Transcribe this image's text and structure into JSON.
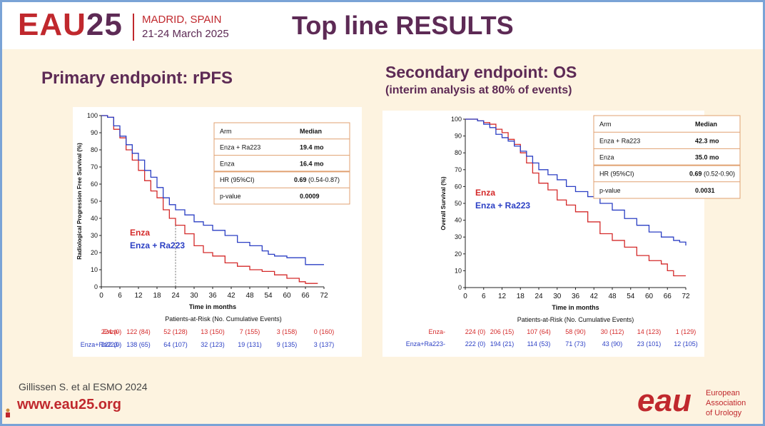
{
  "header": {
    "logo_main": "EAU",
    "logo_num": "25",
    "location": "MADRID, SPAIN",
    "dates": "21-24 March 2025",
    "title": "Top line RESULTS"
  },
  "footer": {
    "citation": "Gillissen S. et al ESMO 2024",
    "url": "www.eau25.org",
    "logo": "eau",
    "org_line1": "European",
    "org_line2": "Association",
    "org_line3": "of Urology"
  },
  "colors": {
    "brand_red": "#c0282d",
    "brand_purple": "#5d2a55",
    "enza": "#d42a2a",
    "enza_ra223": "#2b3fc4",
    "table_border": "#e0a070"
  },
  "chart_data": [
    {
      "type": "line",
      "panel_title": "Primary endpoint: rPFS",
      "ylabel": "Radiological Progression Free Survival (%)",
      "xlabel": "Time in months",
      "xlim": [
        0,
        72
      ],
      "ylim": [
        0,
        100
      ],
      "xticks": [
        0,
        6,
        12,
        18,
        24,
        30,
        36,
        42,
        48,
        54,
        60,
        66,
        72
      ],
      "yticks": [
        0,
        10,
        20,
        30,
        40,
        50,
        60,
        70,
        80,
        90,
        100
      ],
      "series": [
        {
          "name": "Enza",
          "color": "#d42a2a",
          "x": [
            0,
            2,
            4,
            6,
            8,
            10,
            12,
            14,
            16,
            18,
            20,
            22,
            24,
            27,
            30,
            33,
            36,
            40,
            44,
            48,
            52,
            56,
            60,
            64,
            66,
            68,
            70
          ],
          "y": [
            100,
            99,
            92,
            87,
            80,
            74,
            68,
            62,
            56,
            52,
            45,
            40,
            36,
            31,
            24,
            20,
            18,
            14,
            12,
            10,
            9,
            7,
            5,
            3,
            2,
            2,
            2
          ]
        },
        {
          "name": "Enza + Ra223",
          "color": "#2b3fc4",
          "x": [
            0,
            2,
            4,
            6,
            8,
            10,
            12,
            14,
            16,
            18,
            20,
            22,
            24,
            27,
            30,
            33,
            36,
            40,
            44,
            48,
            52,
            54,
            56,
            60,
            66,
            68,
            70,
            72
          ],
          "y": [
            100,
            99,
            94,
            88,
            83,
            78,
            74,
            68,
            64,
            58,
            52,
            48,
            45,
            42,
            38,
            36,
            33,
            30,
            26,
            24,
            21,
            19,
            18,
            17,
            13,
            13,
            13,
            13
          ]
        }
      ],
      "table": {
        "col_arm": "Arm",
        "col_median": "Median",
        "rows": [
          {
            "arm": "Enza + Ra223",
            "median": "19.4 mo"
          },
          {
            "arm": "Enza",
            "median": "16.4 mo"
          },
          {
            "arm": "HR (95%CI)",
            "median_bold": "0.69",
            "median_rest": " (0.54-0.87)"
          },
          {
            "arm": "p-value",
            "median": "0.0009"
          }
        ]
      },
      "legend": [
        "Enza",
        "Enza + Ra223"
      ],
      "risk": {
        "title": "Patients-at-Risk (No. Cumulative Events)",
        "rows": [
          {
            "label": "Enza-",
            "color": "#d42a2a",
            "values": [
              "224 (0)",
              "122 (84)",
              "52 (128)",
              "13 (150)",
              "7 (155)",
              "3 (158)",
              "0 (160)"
            ]
          },
          {
            "label": "Enza+Ra223-",
            "color": "#2b3fc4",
            "values": [
              "222 (0)",
              "138 (65)",
              "64 (107)",
              "32 (123)",
              "19 (131)",
              "9 (135)",
              "3 (137)"
            ]
          }
        ]
      }
    },
    {
      "type": "line",
      "panel_title": "Secondary endpoint: OS",
      "panel_subtitle": "(interim analysis  at 80% of events)",
      "ylabel": "Overall Survival (%)",
      "xlabel": "Time in months",
      "xlim": [
        0,
        72
      ],
      "ylim": [
        0,
        100
      ],
      "xticks": [
        0,
        6,
        12,
        18,
        24,
        30,
        36,
        42,
        48,
        54,
        60,
        66,
        72
      ],
      "yticks": [
        0,
        10,
        20,
        30,
        40,
        50,
        60,
        70,
        80,
        90,
        100
      ],
      "series": [
        {
          "name": "Enza",
          "color": "#d42a2a",
          "x": [
            0,
            4,
            6,
            8,
            10,
            12,
            14,
            16,
            18,
            20,
            22,
            24,
            27,
            30,
            33,
            36,
            40,
            44,
            48,
            52,
            56,
            60,
            64,
            66,
            68,
            70,
            72
          ],
          "y": [
            100,
            99,
            98,
            97,
            94,
            92,
            88,
            85,
            80,
            74,
            68,
            62,
            58,
            52,
            49,
            45,
            39,
            32,
            28,
            24,
            19,
            16,
            14,
            10,
            7,
            7,
            7
          ]
        },
        {
          "name": "Enza + Ra223",
          "color": "#2b3fc4",
          "x": [
            0,
            4,
            6,
            8,
            10,
            12,
            14,
            16,
            18,
            20,
            22,
            24,
            27,
            30,
            33,
            36,
            40,
            44,
            48,
            52,
            56,
            60,
            64,
            68,
            70,
            72
          ],
          "y": [
            100,
            99,
            97,
            95,
            91,
            89,
            87,
            84,
            81,
            78,
            74,
            70,
            67,
            64,
            60,
            57,
            54,
            50,
            46,
            41,
            37,
            33,
            30,
            28,
            27,
            25
          ]
        }
      ],
      "table": {
        "col_arm": "Arm",
        "col_median": "Median",
        "rows": [
          {
            "arm": "Enza + Ra223",
            "median": "42.3 mo"
          },
          {
            "arm": "Enza",
            "median": "35.0 mo"
          },
          {
            "arm": "HR (95%CI)",
            "median_bold": "0.69",
            "median_rest": " (0.52-0.90)"
          },
          {
            "arm": "p-value",
            "median": "0.0031"
          }
        ]
      },
      "legend": [
        "Enza",
        "Enza + Ra223"
      ],
      "risk": {
        "title": "Patients-at-Risk (No. Cumulative Events)",
        "rows": [
          {
            "label": "Enza-",
            "color": "#d42a2a",
            "values": [
              "224 (0)",
              "206 (15)",
              "107 (64)",
              "58 (90)",
              "30 (112)",
              "14 (123)",
              "1 (129)"
            ]
          },
          {
            "label": "Enza+Ra223-",
            "color": "#2b3fc4",
            "values": [
              "222 (0)",
              "194 (21)",
              "114 (53)",
              "71 (73)",
              "43 (90)",
              "23 (101)",
              "12 (105)"
            ]
          }
        ]
      }
    }
  ]
}
